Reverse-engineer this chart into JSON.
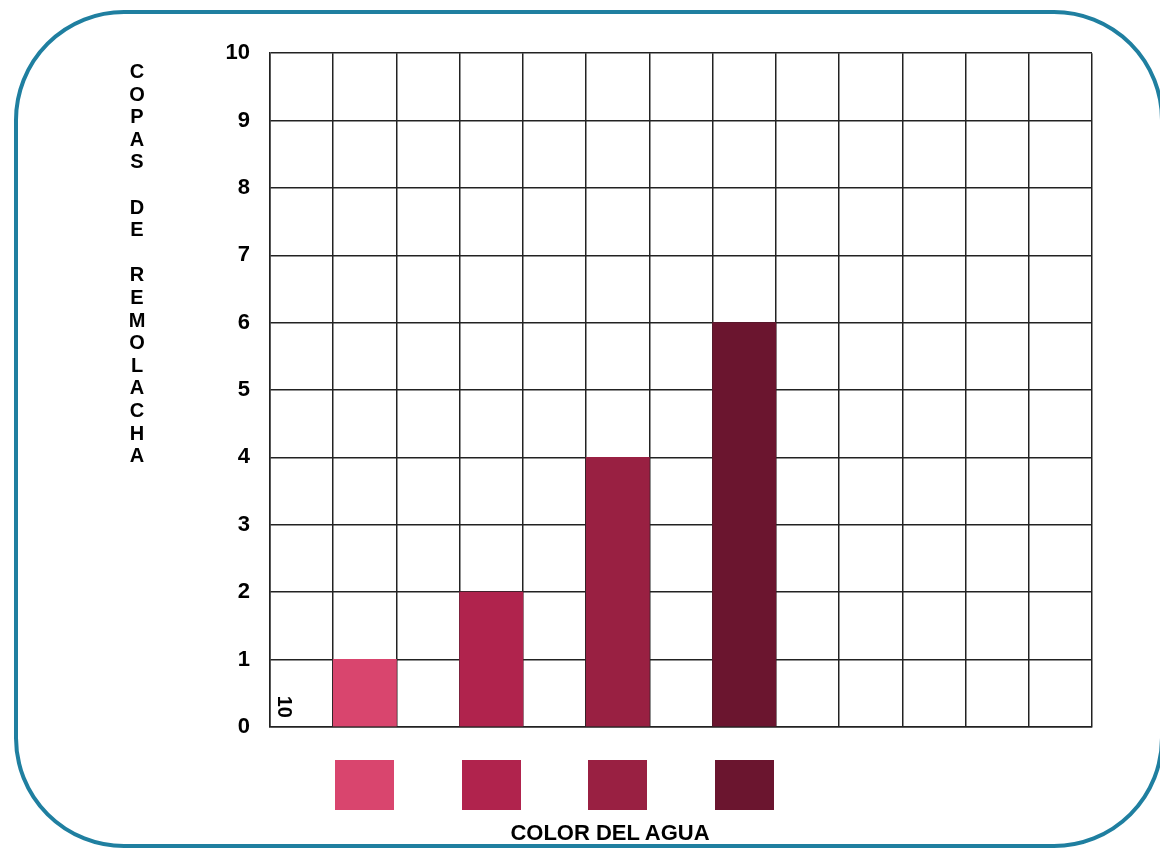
{
  "chart_data": {
    "type": "bar",
    "ylabel": "COPAS DE REMOLACHA",
    "xlabel": "COLOR DEL AGUA",
    "categories": [
      null,
      null,
      null,
      null,
      null,
      null,
      null,
      null,
      null,
      null,
      null,
      null,
      null
    ],
    "values": [
      null,
      1,
      null,
      2,
      null,
      4,
      null,
      6,
      null,
      null,
      null,
      null,
      null
    ],
    "colors": [
      "#d9456e",
      "#d9456e",
      "#b0234d",
      "#b0234d",
      "#992042",
      "#992042",
      "#6b152f",
      "#6b152f",
      "#6b152f",
      "#6b152f",
      "#6b152f",
      "#6b152f",
      "#6b152f"
    ],
    "ylim": [
      0,
      10
    ],
    "yticks": [
      0,
      1,
      2,
      3,
      4,
      5,
      6,
      7,
      8,
      9,
      10
    ],
    "grid": true,
    "tick_labels": "y",
    "annotations": [
      "10"
    ]
  }
}
